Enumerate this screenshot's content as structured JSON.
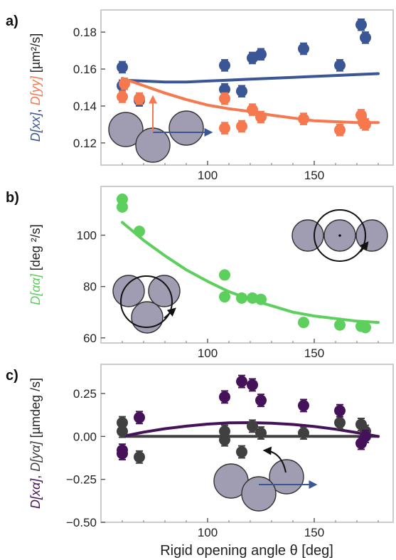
{
  "colors": {
    "blue": "#3a5694",
    "orange": "#f5784f",
    "green": "#5ccf5c",
    "purple": "#45125a",
    "gray": "#404040",
    "frame": "#cccccc",
    "disc": "#a09cb2"
  },
  "xlabel": "Rigid opening angle θ [deg]",
  "chart_data": [
    {
      "type": "scatter",
      "label": "a)",
      "ylabel_parts": [
        {
          "text": "D[xx]",
          "color": "blue",
          "italic": true
        },
        {
          "text": ", ",
          "color": "dark",
          "italic": false
        },
        {
          "text": "D[yy]",
          "color": "orange",
          "italic": true
        },
        {
          "text": " [µm²/s]",
          "color": "dark",
          "italic": false
        }
      ],
      "xlim": [
        50,
        187
      ],
      "ylim": [
        0.108,
        0.192
      ],
      "xticks": [
        100,
        150
      ],
      "xtick_labels": [
        "100",
        "150"
      ],
      "yticks": [
        0.12,
        0.14,
        0.16,
        0.18
      ],
      "ytick_labels": [
        "0.12",
        "0.14",
        "0.16",
        "0.18"
      ],
      "series": [
        {
          "color": "blue",
          "kind": "points",
          "err": 0.003,
          "x": [
            60,
            60,
            68,
            108,
            108,
            116,
            121,
            125,
            145,
            162,
            172,
            174
          ],
          "y": [
            0.161,
            0.151,
            0.143,
            0.162,
            0.149,
            0.148,
            0.166,
            0.168,
            0.171,
            0.162,
            0.184,
            0.177
          ]
        },
        {
          "color": "orange",
          "kind": "points",
          "err": 0.003,
          "x": [
            60,
            61,
            68,
            108,
            108,
            116,
            121,
            125,
            145,
            162,
            172,
            173,
            174
          ],
          "y": [
            0.145,
            0.152,
            0.144,
            0.144,
            0.128,
            0.129,
            0.138,
            0.134,
            0.133,
            0.127,
            0.135,
            0.131,
            0.13
          ]
        },
        {
          "color": "blue",
          "kind": "line",
          "x": [
            60,
            70,
            80,
            90,
            100,
            110,
            120,
            130,
            140,
            150,
            160,
            170,
            180
          ],
          "y": [
            0.154,
            0.1535,
            0.153,
            0.153,
            0.1535,
            0.154,
            0.1545,
            0.155,
            0.1555,
            0.156,
            0.1565,
            0.157,
            0.1575
          ]
        },
        {
          "color": "orange",
          "kind": "line",
          "x": [
            60,
            70,
            80,
            90,
            100,
            110,
            120,
            130,
            140,
            150,
            160,
            170,
            180
          ],
          "y": [
            0.155,
            0.151,
            0.147,
            0.1435,
            0.1405,
            0.1385,
            0.137,
            0.135,
            0.1335,
            0.132,
            0.1315,
            0.131,
            0.131
          ]
        }
      ]
    },
    {
      "type": "scatter",
      "label": "b)",
      "ylabel_parts": [
        {
          "text": "D[αα]",
          "color": "green",
          "italic": true
        },
        {
          "text": " [deg ²/s]",
          "color": "dark",
          "italic": false
        }
      ],
      "xlim": [
        50,
        187
      ],
      "ylim": [
        58,
        119
      ],
      "xticks": [
        100,
        150
      ],
      "xtick_labels": [
        "100",
        "150"
      ],
      "yticks": [
        60,
        80,
        100
      ],
      "ytick_labels": [
        "60",
        "80",
        "100"
      ],
      "series": [
        {
          "color": "green",
          "kind": "points",
          "err": 1.5,
          "x": [
            60,
            60,
            68,
            108,
            108,
            116,
            121,
            125,
            145,
            162,
            172,
            174
          ],
          "y": [
            114,
            111,
            101.5,
            84.5,
            76,
            75.5,
            75.5,
            75,
            66,
            65,
            64.5,
            64
          ]
        },
        {
          "color": "green",
          "kind": "line",
          "x": [
            60,
            70,
            80,
            90,
            100,
            110,
            120,
            130,
            140,
            150,
            160,
            170,
            180
          ],
          "y": [
            105,
            98,
            92,
            86.5,
            82,
            78,
            75,
            72.5,
            70,
            68.5,
            67.5,
            66.5,
            66
          ]
        }
      ]
    },
    {
      "type": "scatter",
      "label": "c)",
      "ylabel_parts": [
        {
          "text": "D[xα]",
          "color": "purple",
          "italic": true
        },
        {
          "text": ", ",
          "color": "dark",
          "italic": false
        },
        {
          "text": "D[yα]",
          "color": "gray",
          "italic": true
        },
        {
          "text": " [µmdeg /s]",
          "color": "dark",
          "italic": false
        }
      ],
      "xlim": [
        50,
        187
      ],
      "ylim": [
        -0.5,
        0.42
      ],
      "xticks": [
        100,
        150
      ],
      "xtick_labels": [
        "100",
        "150"
      ],
      "yticks": [
        -0.5,
        -0.25,
        0.0,
        0.25
      ],
      "ytick_labels": [
        "−0.50",
        "−0.25",
        "0.00",
        "0.25"
      ],
      "series": [
        {
          "color": "gray",
          "kind": "points",
          "err": 0.035,
          "x": [
            60,
            60,
            68,
            108,
            108,
            116,
            121,
            125,
            145,
            162,
            172,
            174
          ],
          "y": [
            0.08,
            0.03,
            -0.12,
            0.03,
            -0.02,
            -0.09,
            0.06,
            0.02,
            0.02,
            0.08,
            0.07,
            0.03
          ]
        },
        {
          "color": "purple",
          "kind": "points",
          "err": 0.035,
          "x": [
            60,
            60,
            68,
            108,
            116,
            121,
            125,
            145,
            162,
            172,
            174
          ],
          "y": [
            -0.08,
            -0.1,
            0.11,
            0.23,
            0.32,
            0.3,
            0.21,
            0.18,
            0.15,
            -0.04,
            0.0
          ]
        },
        {
          "color": "gray",
          "kind": "line",
          "x": [
            60,
            180
          ],
          "y": [
            0.0,
            0.0
          ]
        },
        {
          "color": "purple",
          "kind": "line",
          "x": [
            60,
            70,
            80,
            90,
            100,
            110,
            120,
            130,
            140,
            150,
            160,
            170,
            180
          ],
          "y": [
            0.0,
            0.025,
            0.045,
            0.06,
            0.072,
            0.079,
            0.08,
            0.077,
            0.07,
            0.058,
            0.042,
            0.022,
            0.0
          ]
        }
      ]
    }
  ]
}
